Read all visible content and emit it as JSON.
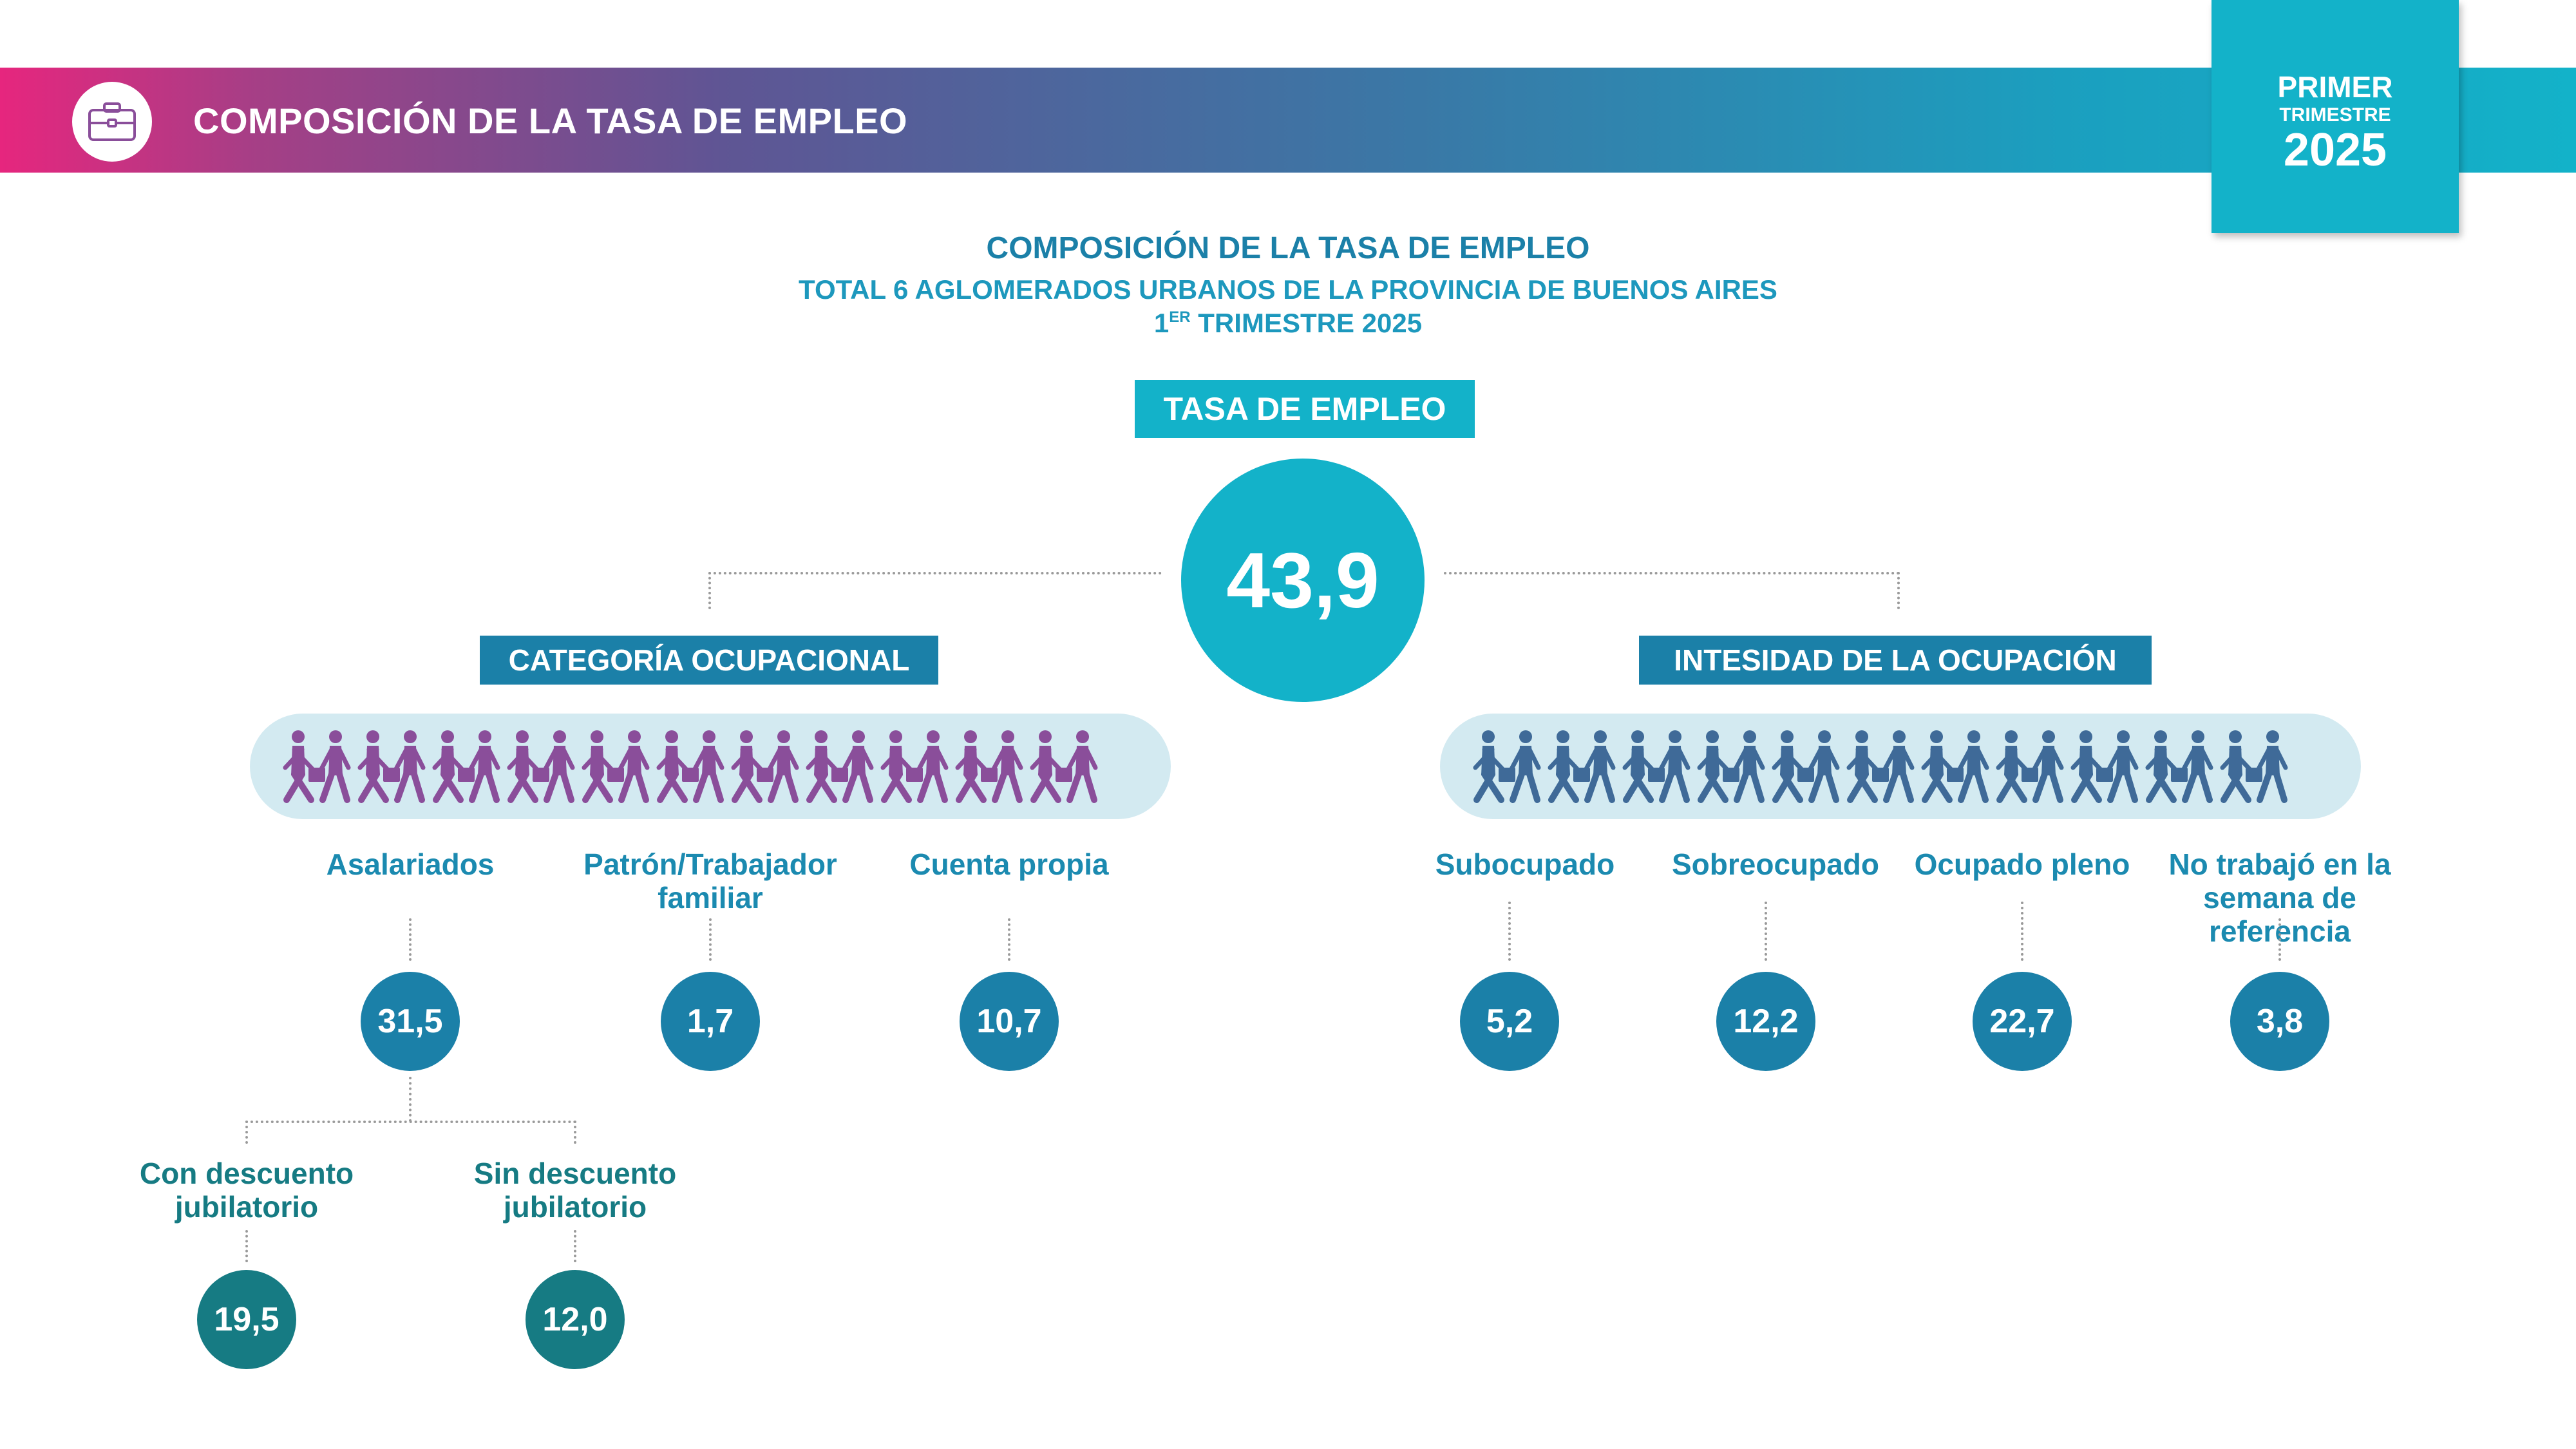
{
  "header": {
    "title": "COMPOSICIÓN DE LA TASA DE EMPLEO",
    "icon": "briefcase-icon",
    "period": {
      "line1": "PRIMER",
      "line2": "TRIMESTRE",
      "line3": "2025"
    }
  },
  "titles": {
    "main": "COMPOSICIÓN DE LA TASA DE EMPLEO",
    "subtitle": "TOTAL 6 AGLOMERADOS URBANOS DE LA PROVINCIA DE BUENOS AIRES",
    "quarter_num": "1",
    "quarter_sup": "ER",
    "quarter_rest": "TRIMESTRE 2025"
  },
  "root": {
    "label": "TASA DE EMPLEO",
    "value": "43,9"
  },
  "branches": {
    "left": {
      "label": "CATEGORÍA OCUPACIONAL",
      "items": [
        {
          "label": "Asalariados",
          "value": "31,5"
        },
        {
          "label": "Patrón/Trabajador familiar",
          "value": "1,7"
        },
        {
          "label": "Cuenta propia",
          "value": "10,7"
        }
      ],
      "sub": [
        {
          "label": "Con descuento jubilatorio",
          "value": "19,5"
        },
        {
          "label": "Sin descuento jubilatorio",
          "value": "12,0"
        }
      ]
    },
    "right": {
      "label": "INTESIDAD DE LA OCUPACIÓN",
      "items": [
        {
          "label": "Subocupado",
          "value": "5,2"
        },
        {
          "label": "Sobreocupado",
          "value": "12,2"
        },
        {
          "label": "Ocupado pleno",
          "value": "22,7"
        },
        {
          "label": "No trabajó en la semana de referencia",
          "value": "3,8"
        }
      ]
    }
  },
  "colors": {
    "accent": "#13b2c9",
    "dark_blue": "#1b80a8",
    "teal": "#167b83",
    "pink": "#e6267e",
    "people_purple": "#8a4e9a",
    "people_blue": "#3f6a98"
  },
  "decor": {
    "people_strip": "walking-workers-icon"
  }
}
